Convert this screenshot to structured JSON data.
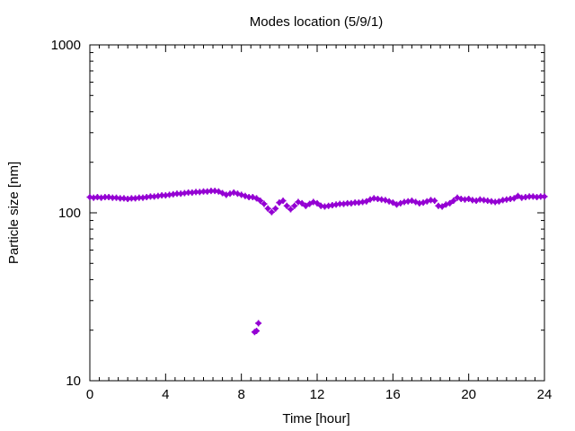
{
  "chart_data": {
    "type": "scatter",
    "title": "Modes location (5/9/1)",
    "xlabel": "Time [hour]",
    "ylabel": "Particle size [nm]",
    "xlim": [
      0,
      24
    ],
    "ylim": [
      10,
      1000
    ],
    "yscale": "log",
    "x_ticks": [
      0,
      4,
      8,
      12,
      16,
      20,
      24
    ],
    "x_tick_labels": [
      "0",
      "4",
      "8",
      "12",
      "16",
      "20",
      "24"
    ],
    "y_ticks": [
      10,
      100,
      1000
    ],
    "y_tick_labels": [
      "10",
      "100",
      "1000"
    ],
    "grid": false,
    "legend": "none",
    "marker_color": "#9400d3",
    "series": [
      {
        "points": [
          [
            0.0,
            124
          ],
          [
            0.2,
            123
          ],
          [
            0.4,
            124
          ],
          [
            0.6,
            123
          ],
          [
            0.8,
            124
          ],
          [
            1.0,
            124
          ],
          [
            1.2,
            123
          ],
          [
            1.4,
            123
          ],
          [
            1.6,
            122
          ],
          [
            1.8,
            122
          ],
          [
            2.0,
            121
          ],
          [
            2.2,
            122
          ],
          [
            2.4,
            122
          ],
          [
            2.6,
            123
          ],
          [
            2.8,
            123
          ],
          [
            3.0,
            124
          ],
          [
            3.2,
            125
          ],
          [
            3.4,
            125
          ],
          [
            3.6,
            126
          ],
          [
            3.8,
            127
          ],
          [
            4.0,
            127
          ],
          [
            4.2,
            128
          ],
          [
            4.4,
            129
          ],
          [
            4.6,
            130
          ],
          [
            4.8,
            130
          ],
          [
            5.0,
            131
          ],
          [
            5.2,
            132
          ],
          [
            5.4,
            132
          ],
          [
            5.6,
            133
          ],
          [
            5.8,
            133
          ],
          [
            6.0,
            134
          ],
          [
            6.2,
            134
          ],
          [
            6.4,
            135
          ],
          [
            6.6,
            135
          ],
          [
            6.8,
            134
          ],
          [
            7.0,
            131
          ],
          [
            7.2,
            128
          ],
          [
            7.4,
            130
          ],
          [
            7.6,
            132
          ],
          [
            7.8,
            130
          ],
          [
            8.0,
            128
          ],
          [
            8.2,
            126
          ],
          [
            8.4,
            124
          ],
          [
            8.6,
            124
          ],
          [
            8.8,
            122
          ],
          [
            9.0,
            118
          ],
          [
            9.2,
            113
          ],
          [
            9.4,
            106
          ],
          [
            9.6,
            101
          ],
          [
            9.8,
            106
          ],
          [
            10.0,
            115
          ],
          [
            10.2,
            118
          ],
          [
            10.4,
            110
          ],
          [
            10.6,
            105
          ],
          [
            10.8,
            110
          ],
          [
            11.0,
            116
          ],
          [
            11.2,
            114
          ],
          [
            11.4,
            110
          ],
          [
            11.6,
            113
          ],
          [
            11.8,
            116
          ],
          [
            12.0,
            114
          ],
          [
            12.2,
            110
          ],
          [
            12.4,
            109
          ],
          [
            12.6,
            110
          ],
          [
            12.8,
            111
          ],
          [
            13.0,
            112
          ],
          [
            13.2,
            113
          ],
          [
            13.4,
            113
          ],
          [
            13.6,
            114
          ],
          [
            13.8,
            114
          ],
          [
            14.0,
            115
          ],
          [
            14.2,
            115
          ],
          [
            14.4,
            116
          ],
          [
            14.6,
            117
          ],
          [
            14.8,
            120
          ],
          [
            15.0,
            122
          ],
          [
            15.2,
            121
          ],
          [
            15.4,
            120
          ],
          [
            15.6,
            119
          ],
          [
            15.8,
            117
          ],
          [
            16.0,
            115
          ],
          [
            16.2,
            112
          ],
          [
            16.4,
            114
          ],
          [
            16.6,
            116
          ],
          [
            16.8,
            117
          ],
          [
            17.0,
            118
          ],
          [
            17.2,
            116
          ],
          [
            17.4,
            114
          ],
          [
            17.6,
            115
          ],
          [
            17.8,
            117
          ],
          [
            18.0,
            119
          ],
          [
            18.2,
            118
          ],
          [
            18.4,
            110
          ],
          [
            18.6,
            109
          ],
          [
            18.8,
            112
          ],
          [
            19.0,
            114
          ],
          [
            19.2,
            118
          ],
          [
            19.4,
            123
          ],
          [
            19.6,
            121
          ],
          [
            19.8,
            120
          ],
          [
            20.0,
            121
          ],
          [
            20.2,
            119
          ],
          [
            20.4,
            118
          ],
          [
            20.6,
            120
          ],
          [
            20.8,
            119
          ],
          [
            21.0,
            118
          ],
          [
            21.2,
            117
          ],
          [
            21.4,
            116
          ],
          [
            21.6,
            117
          ],
          [
            21.8,
            119
          ],
          [
            22.0,
            120
          ],
          [
            22.2,
            121
          ],
          [
            22.4,
            122
          ],
          [
            22.6,
            126
          ],
          [
            22.8,
            123
          ],
          [
            23.0,
            124
          ],
          [
            23.2,
            125
          ],
          [
            23.4,
            125
          ],
          [
            23.6,
            124
          ],
          [
            23.8,
            125
          ],
          [
            24.0,
            125
          ],
          [
            8.7,
            19.5
          ],
          [
            8.8,
            19.8
          ],
          [
            8.9,
            22
          ]
        ]
      }
    ]
  }
}
